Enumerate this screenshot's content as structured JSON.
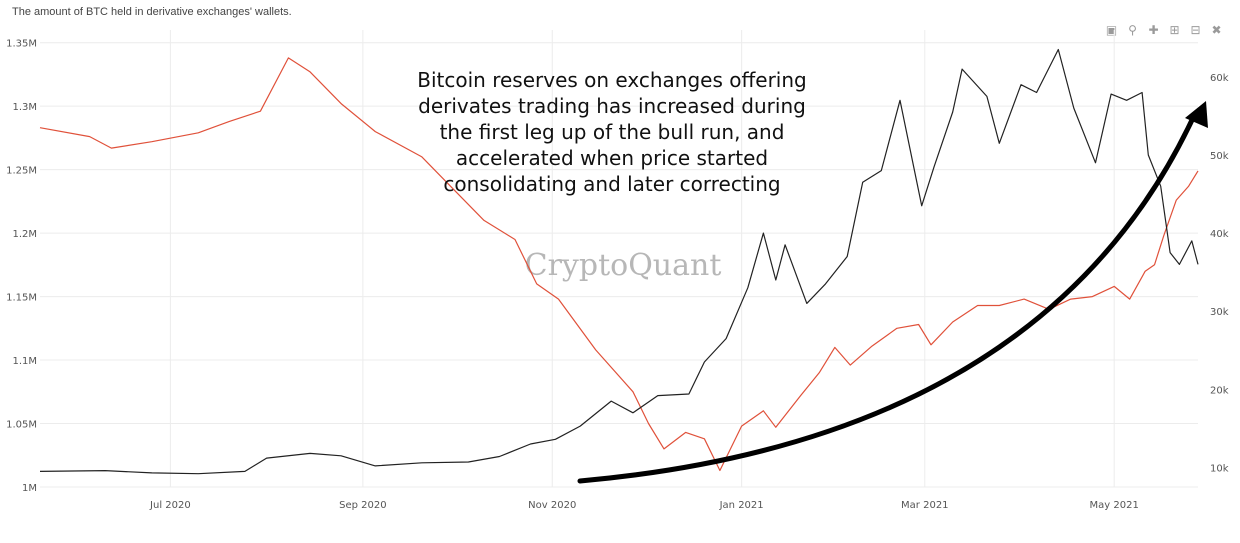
{
  "title": "The amount of BTC held in derivative exchanges' wallets.",
  "watermark": "CryptoQuant",
  "annotation": [
    "Bitcoin reserves on exchanges offering",
    "derivates trading has increased during",
    "the first leg up of the bull run, and",
    "accelerated when price started",
    "consolidating and later correcting"
  ],
  "toolbar": {
    "icons": [
      "camera-icon",
      "zoom-icon",
      "pan-icon",
      "zoom-in-icon",
      "zoom-out-icon",
      "autoscale-icon"
    ]
  },
  "chart_data": {
    "type": "line",
    "x_ticks": [
      "Jul 2020",
      "Sep 2020",
      "Nov 2020",
      "Jan 2021",
      "Mar 2021",
      "May 2021"
    ],
    "x_range": [
      "2020-05-20",
      "2021-05-28"
    ],
    "y_left": {
      "ticks": [
        "1M",
        "1.05M",
        "1.1M",
        "1.15M",
        "1.2M",
        "1.25M",
        "1.3M",
        "1.35M"
      ],
      "range": [
        1000000,
        1360000
      ]
    },
    "y_right": {
      "ticks": [
        "10k",
        "20k",
        "30k",
        "40k",
        "50k",
        "60k"
      ],
      "range": [
        7500,
        66000
      ]
    },
    "grid": true,
    "series": [
      {
        "axis": "left",
        "color": "#e0513a",
        "points": [
          [
            "2020-05-20",
            1283000
          ],
          [
            "2020-06-05",
            1276000
          ],
          [
            "2020-06-12",
            1267000
          ],
          [
            "2020-06-25",
            1272000
          ],
          [
            "2020-07-10",
            1279000
          ],
          [
            "2020-07-20",
            1288000
          ],
          [
            "2020-07-30",
            1296000
          ],
          [
            "2020-08-08",
            1338000
          ],
          [
            "2020-08-15",
            1327000
          ],
          [
            "2020-08-25",
            1302000
          ],
          [
            "2020-09-05",
            1280000
          ],
          [
            "2020-09-20",
            1260000
          ],
          [
            "2020-09-30",
            1235000
          ],
          [
            "2020-10-10",
            1210000
          ],
          [
            "2020-10-20",
            1195000
          ],
          [
            "2020-10-27",
            1160000
          ],
          [
            "2020-11-03",
            1148000
          ],
          [
            "2020-11-15",
            1108000
          ],
          [
            "2020-11-27",
            1075000
          ],
          [
            "2020-12-02",
            1050000
          ],
          [
            "2020-12-07",
            1030000
          ],
          [
            "2020-12-14",
            1043000
          ],
          [
            "2020-12-20",
            1038000
          ],
          [
            "2020-12-25",
            1013000
          ],
          [
            "2021-01-01",
            1048000
          ],
          [
            "2021-01-08",
            1060000
          ],
          [
            "2021-01-12",
            1047000
          ],
          [
            "2021-01-20",
            1072000
          ],
          [
            "2021-01-26",
            1090000
          ],
          [
            "2021-01-31",
            1110000
          ],
          [
            "2021-02-05",
            1096000
          ],
          [
            "2021-02-12",
            1111000
          ],
          [
            "2021-02-20",
            1125000
          ],
          [
            "2021-02-27",
            1128000
          ],
          [
            "2021-03-03",
            1112000
          ],
          [
            "2021-03-10",
            1130000
          ],
          [
            "2021-03-18",
            1143000
          ],
          [
            "2021-03-25",
            1143000
          ],
          [
            "2021-04-02",
            1148000
          ],
          [
            "2021-04-10",
            1140000
          ],
          [
            "2021-04-17",
            1148000
          ],
          [
            "2021-04-24",
            1150000
          ],
          [
            "2021-05-01",
            1158000
          ],
          [
            "2021-05-06",
            1148000
          ],
          [
            "2021-05-11",
            1170000
          ],
          [
            "2021-05-14",
            1175000
          ],
          [
            "2021-05-17",
            1198000
          ],
          [
            "2021-05-21",
            1226000
          ],
          [
            "2021-05-25",
            1237000
          ],
          [
            "2021-05-28",
            1249000
          ]
        ]
      },
      {
        "axis": "right",
        "color": "#222222",
        "points": [
          [
            "2020-05-20",
            9500
          ],
          [
            "2020-06-10",
            9600
          ],
          [
            "2020-06-25",
            9300
          ],
          [
            "2020-07-10",
            9200
          ],
          [
            "2020-07-25",
            9500
          ],
          [
            "2020-08-01",
            11200
          ],
          [
            "2020-08-15",
            11800
          ],
          [
            "2020-08-25",
            11500
          ],
          [
            "2020-09-05",
            10200
          ],
          [
            "2020-09-20",
            10600
          ],
          [
            "2020-10-05",
            10700
          ],
          [
            "2020-10-15",
            11400
          ],
          [
            "2020-10-25",
            13000
          ],
          [
            "2020-11-02",
            13600
          ],
          [
            "2020-11-10",
            15300
          ],
          [
            "2020-11-20",
            18500
          ],
          [
            "2020-11-27",
            17000
          ],
          [
            "2020-12-05",
            19200
          ],
          [
            "2020-12-15",
            19400
          ],
          [
            "2020-12-20",
            23500
          ],
          [
            "2020-12-27",
            26500
          ],
          [
            "2021-01-03",
            33000
          ],
          [
            "2021-01-08",
            40000
          ],
          [
            "2021-01-12",
            34000
          ],
          [
            "2021-01-15",
            38500
          ],
          [
            "2021-01-22",
            31000
          ],
          [
            "2021-01-28",
            33500
          ],
          [
            "2021-02-04",
            37000
          ],
          [
            "2021-02-09",
            46500
          ],
          [
            "2021-02-15",
            48000
          ],
          [
            "2021-02-21",
            57000
          ],
          [
            "2021-02-28",
            43500
          ],
          [
            "2021-03-04",
            48500
          ],
          [
            "2021-03-10",
            55500
          ],
          [
            "2021-03-13",
            61000
          ],
          [
            "2021-03-21",
            57500
          ],
          [
            "2021-03-25",
            51500
          ],
          [
            "2021-04-01",
            59000
          ],
          [
            "2021-04-06",
            58000
          ],
          [
            "2021-04-13",
            63500
          ],
          [
            "2021-04-18",
            56000
          ],
          [
            "2021-04-25",
            49000
          ],
          [
            "2021-04-30",
            57800
          ],
          [
            "2021-05-05",
            57000
          ],
          [
            "2021-05-10",
            58000
          ],
          [
            "2021-05-12",
            50000
          ],
          [
            "2021-05-16",
            46000
          ],
          [
            "2021-05-19",
            37500
          ],
          [
            "2021-05-22",
            36000
          ],
          [
            "2021-05-26",
            39000
          ],
          [
            "2021-05-28",
            36000
          ]
        ]
      }
    ]
  }
}
